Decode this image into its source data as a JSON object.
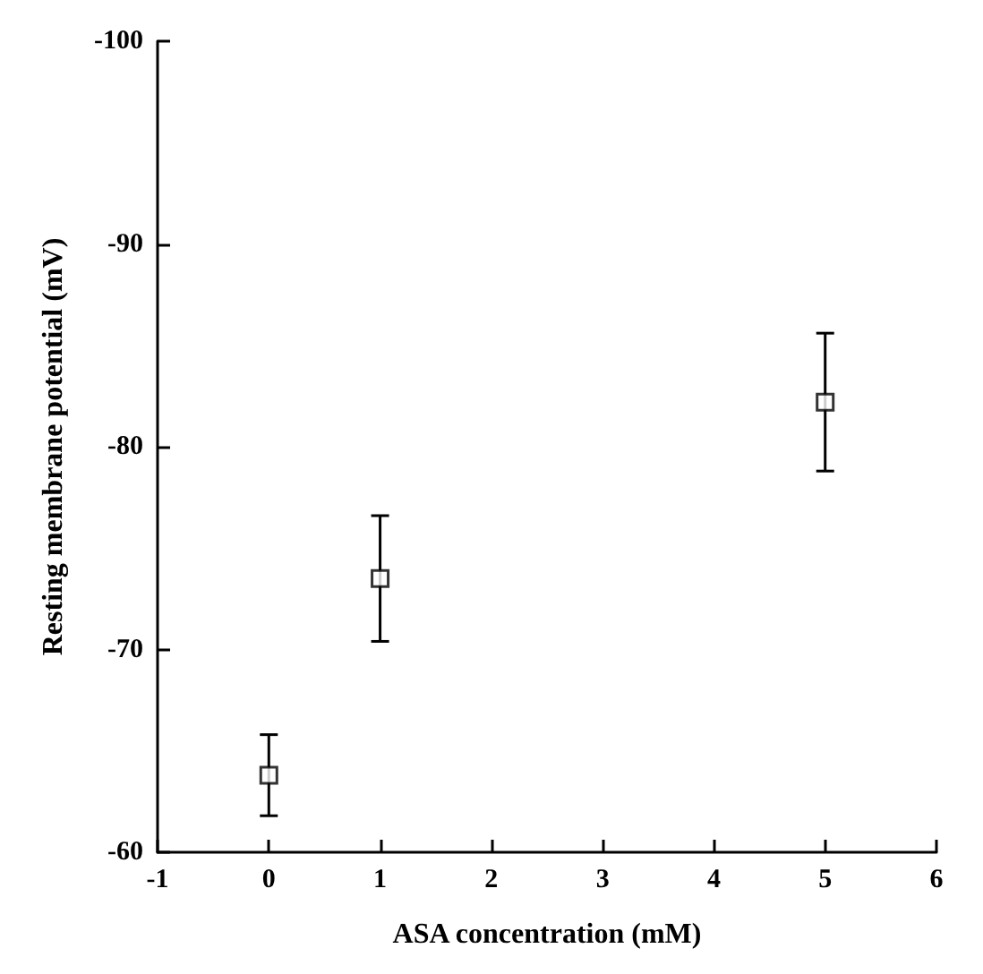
{
  "chart_data": {
    "type": "scatter",
    "xlabel": "ASA concentration (mM)",
    "ylabel": "Resting membrane potential (mV)",
    "x": [
      0,
      1,
      5
    ],
    "values": [
      -63.8,
      -73.5,
      -82.2
    ],
    "errors": [
      2,
      3.1,
      3.4
    ],
    "color": "#000000",
    "marker": "square",
    "xlim": [
      -1,
      6
    ],
    "xticks": [
      -1,
      0,
      1,
      2,
      3,
      4,
      5,
      6
    ],
    "ylim": [
      -60,
      -100
    ],
    "yticks": [
      -60,
      -70,
      -80,
      -90,
      -100
    ],
    "grid": false
  }
}
